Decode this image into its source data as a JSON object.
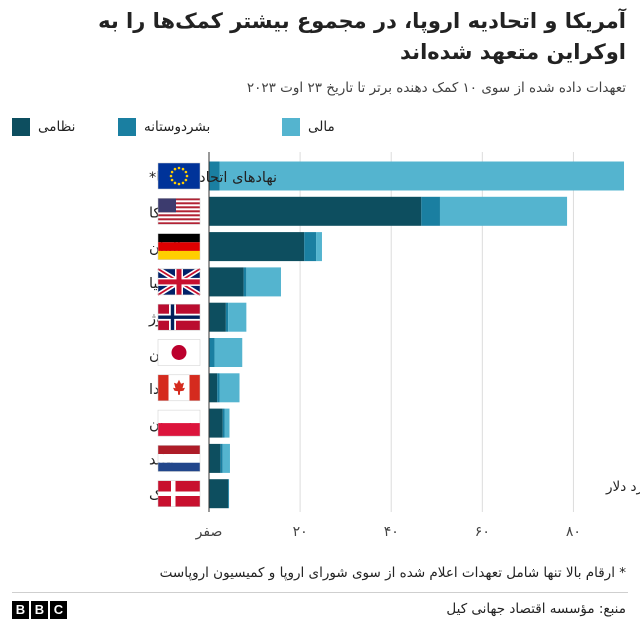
{
  "title": "آمریکا و اتحادیه اروپا، در مجموع بیشتر کمک‌ها را به اوکراین متعهد شده‌اند",
  "subtitle": "تعهدات داده شده از سوی ۱۰ کمک دهنده برتر تا تاریخ ۲۳ اوت ۲۰۲۳",
  "legend": [
    {
      "label": "نظامی",
      "color": "#0d4e5f"
    },
    {
      "label": "بشردوستانه",
      "color": "#1a7fa1"
    },
    {
      "label": "مالی",
      "color": "#54b4cf"
    }
  ],
  "footnote": "* ارقام بالا تنها شامل تعهدات اعلام شده از سوی شورای اروپا و کمیسیون اروپاست",
  "source": "منبع: مؤسسه اقتصاد جهانی کیل",
  "brand": {
    "letters": [
      "B",
      "B",
      "C"
    ]
  },
  "chart_data": {
    "type": "bar",
    "orientation": "horizontal",
    "stacked": true,
    "categories": [
      "نهادهای اتحادیه اروپا*",
      "آمریکا",
      "آلمان",
      "بریتانیا",
      "نروژ",
      "ژاپن",
      "کانادا",
      "لهستان",
      "هلند",
      "دانمارک"
    ],
    "flags": [
      "eu",
      "us",
      "de",
      "gb",
      "no",
      "jp",
      "ca",
      "pl",
      "nl",
      "dk"
    ],
    "series": [
      {
        "name": "نظامی",
        "color": "#0d4e5f",
        "values": [
          0.0,
          46.6,
          20.9,
          7.6,
          3.7,
          0.0,
          1.8,
          3.0,
          2.5,
          4.2
        ]
      },
      {
        "name": "بشردوستانه",
        "color": "#1a7fa1",
        "values": [
          2.3,
          4.1,
          2.6,
          0.6,
          0.5,
          1.2,
          0.5,
          0.4,
          0.5,
          0.2
        ]
      },
      {
        "name": "مالی",
        "color": "#54b4cf",
        "values": [
          88.8,
          27.9,
          1.3,
          7.6,
          4.0,
          6.1,
          4.4,
          1.1,
          1.6,
          0.0
        ]
      }
    ],
    "xlim": [
      0,
      90
    ],
    "xticks": [
      0,
      20,
      40,
      60,
      80
    ],
    "xtick_labels": [
      "صفر",
      "۲۰",
      "۴۰",
      "۶۰",
      "۸۰"
    ],
    "unit_label": "میلیارد دلار",
    "grid": true
  }
}
